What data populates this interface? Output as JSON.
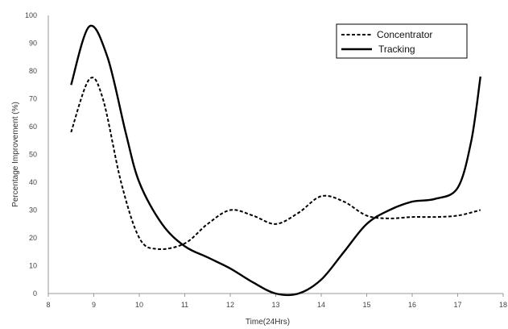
{
  "chart_data": {
    "type": "line",
    "xlabel": "Time(24Hrs)",
    "ylabel": "Percentage Improvement (%)",
    "xlim": [
      8,
      18
    ],
    "ylim": [
      0,
      100
    ],
    "x_ticks": [
      "8",
      "9",
      "10",
      "11",
      "12",
      "13",
      "14",
      "15",
      "16",
      "17",
      "18"
    ],
    "y_ticks": [
      "0",
      "10",
      "20",
      "30",
      "40",
      "50",
      "60",
      "70",
      "80",
      "90",
      "100"
    ],
    "grid": false,
    "legend_position": "top-right",
    "legend_box": true,
    "series": [
      {
        "name": "Concentrator",
        "style": "dashed",
        "color": "#000000",
        "points": [
          [
            8.5,
            58
          ],
          [
            8.9,
            77
          ],
          [
            9.2,
            70
          ],
          [
            9.6,
            40
          ],
          [
            10.0,
            20
          ],
          [
            10.4,
            16
          ],
          [
            11.0,
            18
          ],
          [
            11.5,
            25
          ],
          [
            12.0,
            30
          ],
          [
            12.5,
            28
          ],
          [
            13.0,
            25
          ],
          [
            13.5,
            29
          ],
          [
            14.0,
            35
          ],
          [
            14.5,
            33
          ],
          [
            15.0,
            28
          ],
          [
            15.5,
            27
          ],
          [
            16.0,
            27.5
          ],
          [
            16.5,
            27.5
          ],
          [
            17.0,
            28
          ],
          [
            17.5,
            30
          ]
        ]
      },
      {
        "name": "Tracking",
        "style": "solid",
        "color": "#000000",
        "points": [
          [
            8.5,
            75
          ],
          [
            8.9,
            96
          ],
          [
            9.3,
            85
          ],
          [
            9.7,
            58
          ],
          [
            10.0,
            40
          ],
          [
            10.5,
            25
          ],
          [
            11.0,
            17
          ],
          [
            11.5,
            13
          ],
          [
            12.0,
            9
          ],
          [
            12.5,
            4
          ],
          [
            13.0,
            0
          ],
          [
            13.5,
            0
          ],
          [
            14.0,
            5
          ],
          [
            14.5,
            15
          ],
          [
            15.0,
            25
          ],
          [
            15.5,
            30
          ],
          [
            16.0,
            33
          ],
          [
            16.5,
            34
          ],
          [
            17.0,
            38
          ],
          [
            17.3,
            55
          ],
          [
            17.5,
            78
          ]
        ]
      }
    ]
  }
}
